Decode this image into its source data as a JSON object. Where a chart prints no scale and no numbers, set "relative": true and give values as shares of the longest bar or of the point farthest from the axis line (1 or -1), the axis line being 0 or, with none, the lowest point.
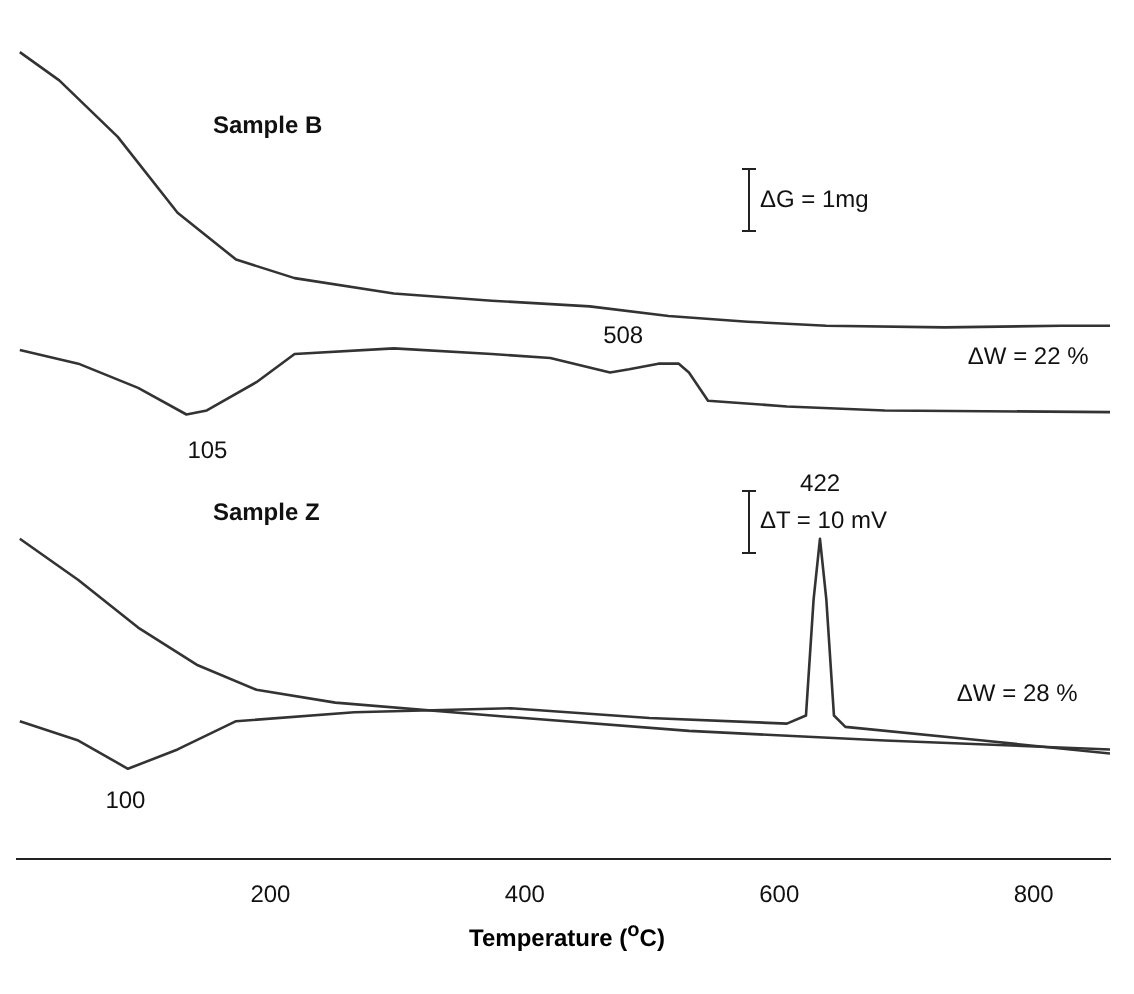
{
  "chart_data": {
    "type": "line",
    "xlabel": "Temperature ($^{o}$C)",
    "relative": true,
    "xlim": [
      0,
      860
    ],
    "xticks": [
      200,
      400,
      600,
      800
    ],
    "grid": false,
    "legend": false,
    "marker": "none",
    "line_style": "solid",
    "series": [
      {
        "color": "#333333",
        "x": [
          3,
          34,
          80,
          127,
          173,
          219,
          297,
          374,
          451,
          513,
          575,
          637,
          730,
          822,
          860
        ],
        "values": [
          1.0,
          0.965,
          0.895,
          0.801,
          0.743,
          0.72,
          0.701,
          0.692,
          0.685,
          0.673,
          0.666,
          0.661,
          0.659,
          0.661,
          0.661
        ]
      },
      {
        "color": "#333333",
        "x": [
          3,
          49,
          96,
          134,
          150,
          189,
          219,
          297,
          374,
          420,
          467,
          482,
          505,
          521,
          529,
          544,
          606,
          683,
          860
        ],
        "values": [
          0.631,
          0.614,
          0.584,
          0.551,
          0.556,
          0.591,
          0.626,
          0.633,
          0.626,
          0.621,
          0.603,
          0.607,
          0.614,
          0.614,
          0.603,
          0.568,
          0.561,
          0.556,
          0.554
        ]
      },
      {
        "color": "#333333",
        "x": [
          3,
          49,
          96,
          142,
          189,
          251,
          374,
          529,
          683,
          860
        ],
        "values": [
          0.397,
          0.346,
          0.287,
          0.241,
          0.21,
          0.194,
          0.178,
          0.159,
          0.147,
          0.136
        ]
      },
      {
        "color": "#333333",
        "x": [
          3,
          49,
          88,
          127,
          173,
          266,
          389,
          498,
          606,
          621,
          627,
          632,
          637,
          643,
          652,
          760,
          860
        ],
        "values": [
          0.171,
          0.147,
          0.112,
          0.136,
          0.171,
          0.182,
          0.187,
          0.175,
          0.168,
          0.178,
          0.322,
          0.397,
          0.322,
          0.178,
          0.164,
          0.147,
          0.131
        ]
      }
    ],
    "annotations": [
      "Sample B",
      "Sample Z",
      "ΔG = 1mg",
      "ΔT = 10 mV",
      "ΔW = 22 %",
      "ΔW = 28 %",
      "508",
      "105",
      "422",
      "100"
    ]
  }
}
